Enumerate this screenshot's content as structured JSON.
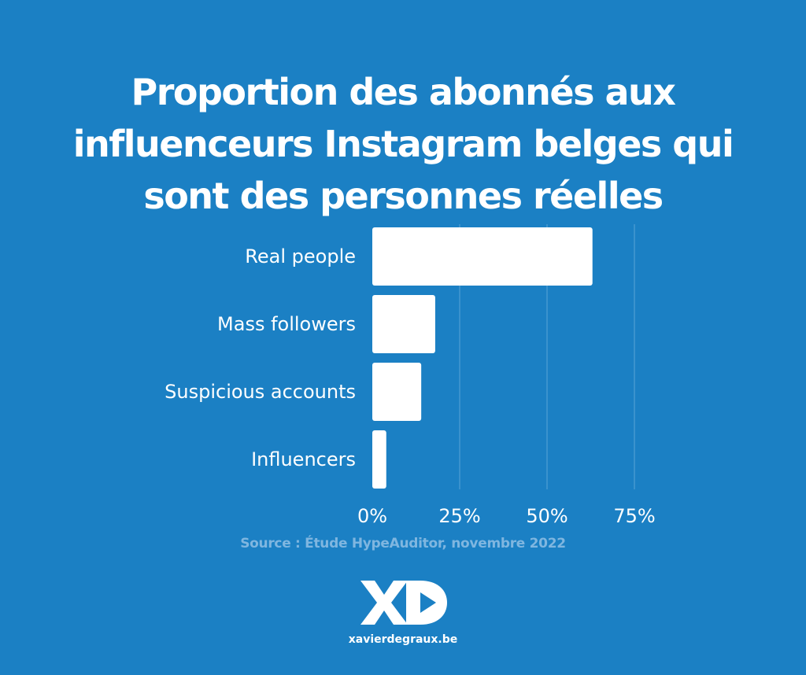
{
  "title_lines": [
    "Proportion des abonnés aux",
    "influenceurs Instagram belges qui",
    "sont des personnes réelles"
  ],
  "chart_data": {
    "type": "bar",
    "orientation": "horizontal",
    "title": "Proportion des abonnés aux influenceurs Instagram belges qui sont des personnes réelles",
    "categories": [
      "Real people",
      "Mass followers",
      "Suspicious accounts",
      "Influencers"
    ],
    "values": [
      63,
      18,
      14,
      4
    ],
    "unit": "%",
    "xlim": [
      0,
      75
    ],
    "xticks": [
      0,
      25,
      50,
      75
    ],
    "xtick_labels": [
      "0%",
      "25%",
      "50%",
      "75%"
    ],
    "grid": "vertical",
    "xlabel": "",
    "ylabel": "",
    "bar_color": "#ffffff",
    "background_color": "#1b80c4"
  },
  "source": "Source : Étude HypeAuditor, novembre 2022",
  "footer": {
    "logo_icon": "xd-play-logo-icon",
    "site": "xavierdegraux.be"
  }
}
